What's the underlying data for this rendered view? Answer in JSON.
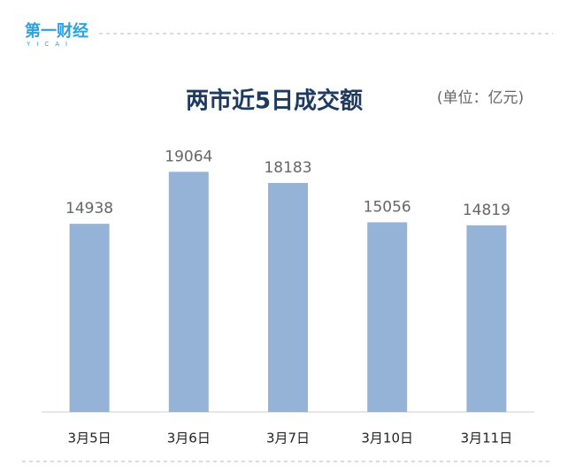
{
  "logo": {
    "name": "第一财经",
    "letters": "YICAI"
  },
  "chart_data": {
    "type": "bar",
    "title": "两市近5日成交额",
    "unit": "(单位：亿元)",
    "categories": [
      "3月5日",
      "3月6日",
      "3月7日",
      "3月10日",
      "3月11日"
    ],
    "values": [
      14938,
      19064,
      18183,
      15056,
      14819
    ],
    "color": "#95b3d7",
    "ylim": [
      0,
      20000
    ]
  }
}
